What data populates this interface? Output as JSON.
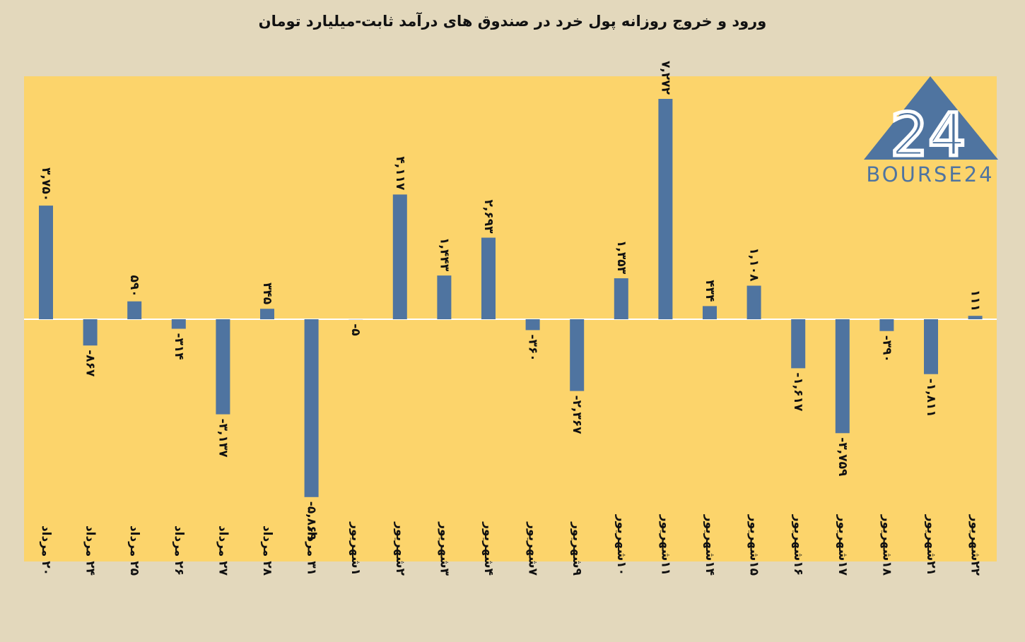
{
  "chart_data": {
    "type": "bar",
    "title": "ورود و خروج روزانه پول خرد در صندوق های درآمد ثابت-میلیارد تومان",
    "xlabel": "",
    "ylabel": "",
    "ylim": [
      -7000,
      8600
    ],
    "grid": false,
    "legend": "none",
    "bar_color": "#4f74a0",
    "plot_background": "#fcd46b",
    "page_background": "#e3d8bc",
    "categories": [
      "۲۰ مرداد",
      "۲۴ مرداد",
      "۲۵ مرداد",
      "۲۶ مرداد",
      "۲۷ مرداد",
      "۲۸ مرداد",
      "۳۱ مرداد",
      "۱شهریور",
      "۲شهریور",
      "۳شهریور",
      "۴شهریور",
      "۷شهریور",
      "۹شهریور",
      "۱۰شهریور",
      "۱۱شهریور",
      "۱۴شهریور",
      "۱۵شهریور",
      "۱۶شهریور",
      "۱۷شهریور",
      "۱۸شهریور",
      "۲۱شهریور",
      "۲۲شهریور"
    ],
    "values": [
      3750,
      -867,
      590,
      -314,
      -3137,
      345,
      -5869,
      -5,
      4117,
      1443,
      2693,
      -360,
      -2367,
      1353,
      7272,
      434,
      1108,
      -1617,
      -3759,
      -390,
      -1811,
      111
    ],
    "data_labels": [
      "۳,۷۵۰",
      "-۸۶۷",
      "۵۹۰",
      "-۳۱۴",
      "-۳,۱۳۷",
      "۳۴۵",
      "-۵,۸۶۹",
      "-۵",
      "۴,۱۱۷",
      "۱,۴۴۳",
      "۲,۶۹۳",
      "-۳۶۰",
      "-۲,۳۶۷",
      "۱,۳۵۳",
      "۷,۲۷۲",
      "۴۳۴",
      "۱,۱۰۸",
      "-۱,۶۱۷",
      "-۳,۷۵۹",
      "-۳۹۰",
      "-۱,۸۱۱",
      "۱۱۱"
    ]
  },
  "logo": {
    "number": "24",
    "text": "BOURSE24"
  }
}
